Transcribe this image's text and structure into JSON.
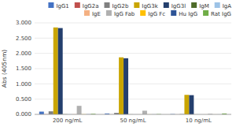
{
  "chart_data": {
    "type": "bar",
    "categories": [
      "200 ng/mL",
      "50 ng/mL",
      "10 ng/mL"
    ],
    "series": [
      {
        "name": "IgG1",
        "color": "#4472c4",
        "values": [
          0.09,
          0.03,
          0.01
        ]
      },
      {
        "name": "IgG2a",
        "color": "#c0504d",
        "values": [
          0.005,
          0.002,
          0.001
        ]
      },
      {
        "name": "IgG2b",
        "color": "#808080",
        "values": [
          0.1,
          0.05,
          0.01
        ]
      },
      {
        "name": "IgG3k",
        "color": "#c9a500",
        "values": [
          2.85,
          1.87,
          0.64
        ]
      },
      {
        "name": "IgG3l",
        "color": "#243f6d",
        "values": [
          2.83,
          1.84,
          0.63
        ]
      },
      {
        "name": "IgM",
        "color": "#4e6b29",
        "values": [
          0.005,
          0.002,
          0.001
        ]
      },
      {
        "name": "IgA",
        "color": "#9dc3e6",
        "values": [
          0.005,
          0.002,
          0.001
        ]
      },
      {
        "name": "IgE",
        "color": "#f4b183",
        "values": [
          0.005,
          0.002,
          0.001
        ]
      },
      {
        "name": "IgG Fab",
        "color": "#b0b0b0",
        "values": [
          0.28,
          0.12,
          0.02
        ]
      },
      {
        "name": "IgG Fc",
        "color": "#ffc000",
        "values": [
          0.005,
          0.002,
          0.001
        ]
      },
      {
        "name": "Hu IgG",
        "color": "#2e5496",
        "values": [
          0.005,
          0.002,
          0.001
        ]
      },
      {
        "name": "Rat IgG",
        "color": "#70ad47",
        "values": [
          0.02,
          0.01,
          0.03
        ]
      }
    ],
    "ylabel": "Abs (405nm)",
    "ylim": [
      0,
      3.0
    ],
    "yticks": [
      {
        "value": 0.0,
        "label": "0.000"
      },
      {
        "value": 0.5,
        "label": "0.500"
      },
      {
        "value": 1.0,
        "label": "1.000"
      },
      {
        "value": 1.5,
        "label": "1.500"
      },
      {
        "value": 2.0,
        "label": "2.000"
      },
      {
        "value": 2.5,
        "label": "2.500"
      },
      {
        "value": 3.0,
        "label": "3.000"
      }
    ],
    "grid": true,
    "legend": "upper right"
  }
}
